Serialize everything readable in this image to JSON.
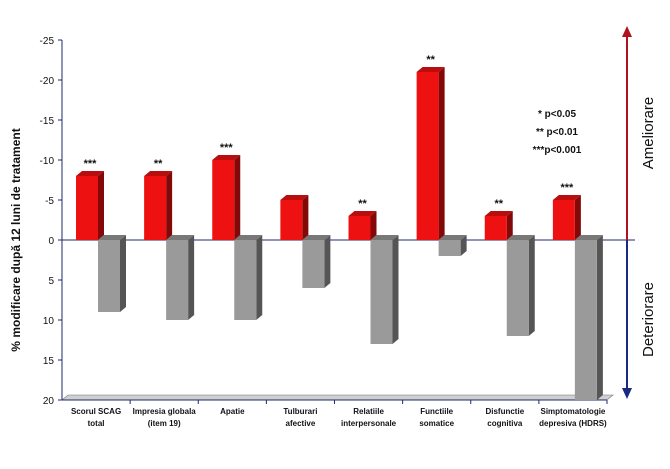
{
  "chart_data": {
    "type": "bar",
    "ylabel": "% modificare după 12 luni de tratament",
    "ylim": [
      -25,
      20
    ],
    "y_ticks": [
      -25,
      -20,
      -15,
      -10,
      -5,
      0,
      5,
      10,
      15,
      20
    ],
    "categories": [
      [
        "Scorul SCAG",
        "total"
      ],
      [
        "Impresia globala",
        "(item 19)"
      ],
      [
        "Apatie"
      ],
      [
        "Tulburari",
        "afective"
      ],
      [
        "Relatiile",
        "interpersonale"
      ],
      [
        "Functiile",
        "somatice"
      ],
      [
        "Disfunctie",
        "cognitiva"
      ],
      [
        "Simptomatologie",
        "depresiva (HDRS)"
      ]
    ],
    "series": [
      {
        "values": [
          -8,
          -8,
          -10,
          -5,
          -3,
          -21,
          -3,
          -5
        ],
        "color": "#ee1111"
      },
      {
        "values": [
          9,
          10,
          10,
          6,
          13,
          2,
          12,
          20
        ],
        "color": "#9a9a9a"
      }
    ],
    "significance": [
      "***",
      "**",
      "***",
      "",
      "**",
      "**",
      "**",
      "***"
    ],
    "legend_lines": [
      "* p<0.05",
      "** p<0.01",
      "***p<0.001"
    ],
    "arrow_labels": {
      "up": "Ameliorare",
      "down": "Deteriorare"
    },
    "colors": {
      "arrow_up": "#b01020",
      "arrow_down": "#1a2a80",
      "axis": "#1c2a6e"
    }
  }
}
